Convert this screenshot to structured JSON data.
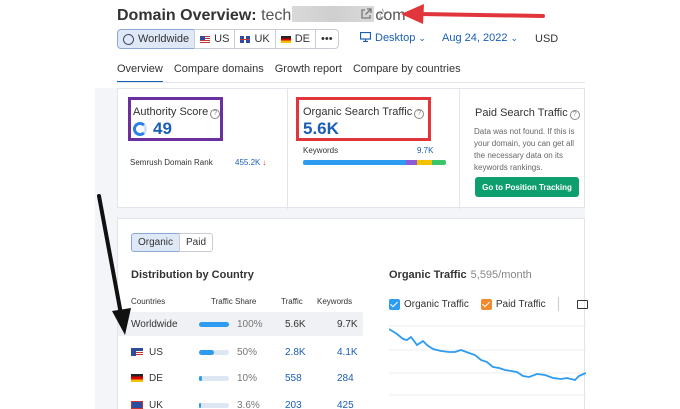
{
  "header": {
    "title_label": "Domain Overview:",
    "domain_prefix": "tech",
    "domain_suffix": "com",
    "dbs": [
      "Worldwide",
      "US",
      "UK",
      "DE",
      "•••"
    ],
    "device": "Desktop",
    "date": "Aug 24, 2022",
    "currency": "USD"
  },
  "tabs": [
    "Overview",
    "Compare domains",
    "Growth report",
    "Compare by countries"
  ],
  "authority": {
    "label": "Authority Score",
    "value": "49",
    "rank_label": "Semrush Domain Rank",
    "rank_value": "455.2K",
    "rank_arrow": "↓"
  },
  "organic": {
    "label": "Organic Search Traffic",
    "value": "5.6K",
    "keywords_label": "Keywords",
    "keywords_value": "9.7K",
    "bar_segments": [
      {
        "share": 0.72,
        "color": "#2d9cf0"
      },
      {
        "share": 0.08,
        "color": "#8e5cd9"
      },
      {
        "share": 0.1,
        "color": "#f2c300"
      },
      {
        "share": 0.1,
        "color": "#3cc46a"
      }
    ]
  },
  "paid": {
    "label": "Paid Search Traffic",
    "message": "Data was not found. If this is your domain, you can get all the necessary data on its keywords rankings.",
    "button": "Go to Position Tracking"
  },
  "distribution": {
    "toggle": [
      "Organic",
      "Paid"
    ],
    "title": "Distribution by Country",
    "columns": [
      "Countries",
      "Traffic Share",
      "Traffic",
      "Keywords"
    ],
    "rows": [
      {
        "country": "Worldwide",
        "flag": "none",
        "share": "100%",
        "share_frac": 1.0,
        "traffic": "5.6K",
        "keywords": "9.7K"
      },
      {
        "country": "US",
        "flag": "us",
        "share": "50%",
        "share_frac": 0.5,
        "traffic": "2.8K",
        "keywords": "4.1K"
      },
      {
        "country": "DE",
        "flag": "de",
        "share": "10%",
        "share_frac": 0.1,
        "traffic": "558",
        "keywords": "284"
      },
      {
        "country": "UK",
        "flag": "uk",
        "share": "3.6%",
        "share_frac": 0.036,
        "traffic": "203",
        "keywords": "425"
      }
    ]
  },
  "organic_chart": {
    "title": "Organic Traffic",
    "subtitle": "5,595/month",
    "legend_organic": "Organic Traffic",
    "legend_paid": "Paid Traffic",
    "line_color": "#2d9cf0"
  },
  "annotations": {
    "purple": "#6b2fa0",
    "red": "#e0353b",
    "black": "#111111"
  }
}
